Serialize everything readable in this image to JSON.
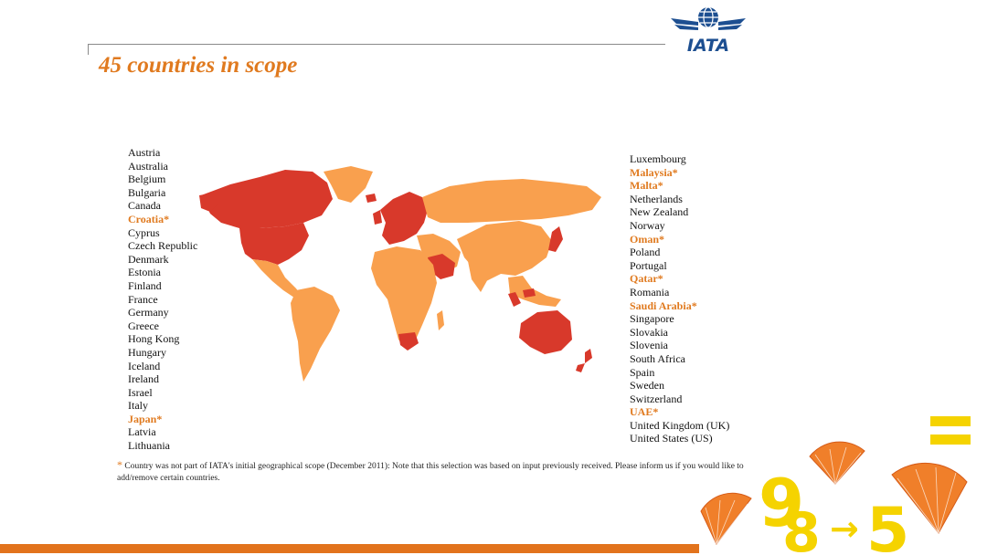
{
  "title": "45 countries in scope",
  "logo": {
    "text": "IATA",
    "color": "#1d4f91"
  },
  "colors": {
    "accent": "#e07a1f",
    "in_scope": "#d8392b",
    "not_in_scope": "#f9a04e",
    "bar": "#e2731c",
    "brand_yellow": "#f5d300"
  },
  "countries_left": [
    {
      "name": "Austria",
      "new": false
    },
    {
      "name": "Australia",
      "new": false
    },
    {
      "name": "Belgium",
      "new": false
    },
    {
      "name": "Bulgaria",
      "new": false
    },
    {
      "name": "Canada",
      "new": false
    },
    {
      "name": "Croatia*",
      "new": true
    },
    {
      "name": "Cyprus",
      "new": false
    },
    {
      "name": "Czech Republic",
      "new": false
    },
    {
      "name": "Denmark",
      "new": false
    },
    {
      "name": "Estonia",
      "new": false
    },
    {
      "name": "Finland",
      "new": false
    },
    {
      "name": "France",
      "new": false
    },
    {
      "name": "Germany",
      "new": false
    },
    {
      "name": "Greece",
      "new": false
    },
    {
      "name": "Hong Kong",
      "new": false
    },
    {
      "name": "Hungary",
      "new": false
    },
    {
      "name": "Iceland",
      "new": false
    },
    {
      "name": "Ireland",
      "new": false
    },
    {
      "name": "Israel",
      "new": false
    },
    {
      "name": "Italy",
      "new": false
    },
    {
      "name": "Japan*",
      "new": true
    },
    {
      "name": "Latvia",
      "new": false
    },
    {
      "name": "Lithuania",
      "new": false
    }
  ],
  "countries_right": [
    {
      "name": "Luxembourg",
      "new": false
    },
    {
      "name": "Malaysia*",
      "new": true
    },
    {
      "name": "Malta*",
      "new": true
    },
    {
      "name": "Netherlands",
      "new": false
    },
    {
      "name": "New Zealand",
      "new": false
    },
    {
      "name": "Norway",
      "new": false
    },
    {
      "name": "Oman*",
      "new": true
    },
    {
      "name": "Poland",
      "new": false
    },
    {
      "name": "Portugal",
      "new": false
    },
    {
      "name": "Qatar*",
      "new": true
    },
    {
      "name": "Romania",
      "new": false
    },
    {
      "name": "Saudi Arabia*",
      "new": true
    },
    {
      "name": "Singapore",
      "new": false
    },
    {
      "name": "Slovakia",
      "new": false
    },
    {
      "name": "Slovenia",
      "new": false
    },
    {
      "name": "South Africa",
      "new": false
    },
    {
      "name": "Spain",
      "new": false
    },
    {
      "name": "Sweden",
      "new": false
    },
    {
      "name": "Switzerland",
      "new": false
    },
    {
      "name": "UAE*",
      "new": true
    },
    {
      "name": "United Kingdom (UK)",
      "new": false
    },
    {
      "name": "United States (US)",
      "new": false
    }
  ],
  "footnote": {
    "marker": "*",
    "text": "Country was not part of IATA's initial geographical scope (December 2011): Note that this selection was based on input previously received. Please inform us if you would like to add/remove certain countries."
  },
  "brand_mark": {
    "left_digit": "9",
    "overlay_digit": "8",
    "arrow": "→",
    "right_digit": "5"
  }
}
